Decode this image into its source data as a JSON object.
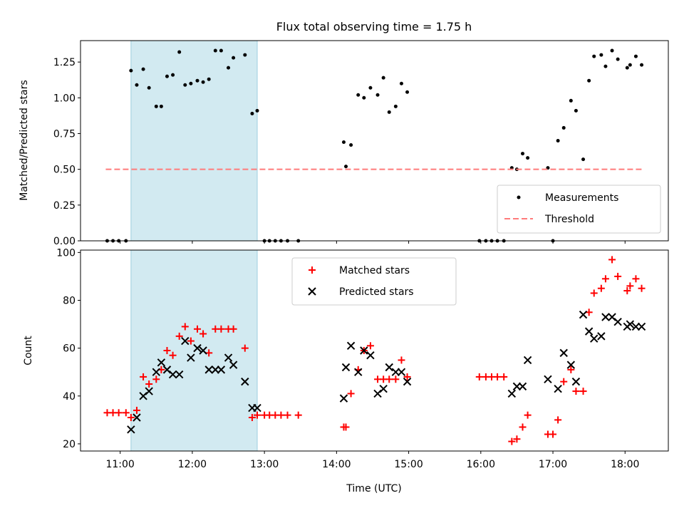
{
  "chart_data": [
    {
      "type": "scatter",
      "title": "Flux total observing time = 1.75 h",
      "ylabel": "Matched/Predicted stars",
      "xlabel": "",
      "xlim": [
        10.45,
        18.6
      ],
      "ylim": [
        0,
        1.4
      ],
      "yticks": [
        "0.00",
        "0.25",
        "0.50",
        "0.75",
        "1.00",
        "1.25"
      ],
      "shaded_interval": [
        11.15,
        12.9
      ],
      "shade_color": "#add8e6",
      "series": [
        {
          "name": "Measurements",
          "marker": "dot",
          "color": "#000000",
          "x": [
            10.82,
            10.9,
            10.98,
            11.08,
            11.15,
            11.23,
            11.32,
            11.4,
            11.5,
            11.57,
            11.65,
            11.73,
            11.82,
            11.9,
            11.98,
            12.07,
            12.15,
            12.23,
            12.32,
            12.4,
            12.5,
            12.57,
            12.73,
            12.83,
            12.9,
            13.0,
            13.07,
            13.15,
            13.23,
            13.32,
            13.47,
            14.1,
            14.13,
            14.2,
            14.3,
            14.38,
            14.47,
            14.57,
            14.65,
            14.73,
            14.82,
            14.9,
            14.98,
            15.98,
            16.07,
            16.15,
            16.23,
            16.32,
            16.43,
            16.5,
            16.58,
            16.65,
            16.93,
            17.0,
            17.07,
            17.15,
            17.25,
            17.32,
            17.42,
            17.5,
            17.57,
            17.67,
            17.73,
            17.82,
            17.9,
            18.03,
            18.07,
            18.15,
            18.23
          ],
          "y": [
            0,
            0,
            0,
            0,
            1.19,
            1.09,
            1.2,
            1.07,
            0.94,
            0.94,
            1.15,
            1.16,
            1.32,
            1.09,
            1.1,
            1.12,
            1.11,
            1.13,
            1.33,
            1.33,
            1.21,
            1.28,
            1.3,
            0.89,
            0.91,
            0,
            0,
            0,
            0,
            0,
            0,
            0.69,
            0.52,
            0.67,
            1.02,
            1.0,
            1.07,
            1.02,
            1.14,
            0.9,
            0.94,
            1.1,
            1.04,
            0,
            0,
            0,
            0,
            0,
            0.51,
            0.5,
            0.61,
            0.58,
            0.51,
            0,
            0.7,
            0.79,
            0.98,
            0.91,
            0.57,
            1.12,
            1.29,
            1.3,
            1.22,
            1.33,
            1.27,
            1.21,
            1.23,
            1.29,
            1.23
          ]
        },
        {
          "name": "Threshold",
          "style": "dashed",
          "color": "#ff6b6b",
          "x": [
            10.8,
            18.25
          ],
          "y": [
            0.5,
            0.5
          ]
        }
      ],
      "legend": "lower-right"
    },
    {
      "type": "scatter",
      "title": "",
      "xlabel": "Time (UTC)",
      "ylabel": "Count",
      "xlim": [
        10.45,
        18.6
      ],
      "ylim": [
        17,
        101
      ],
      "yticks": [
        "20",
        "40",
        "60",
        "80",
        "100"
      ],
      "xticks": [
        "11:00",
        "12:00",
        "13:00",
        "14:00",
        "15:00",
        "16:00",
        "17:00",
        "18:00"
      ],
      "shaded_interval": [
        11.15,
        12.9
      ],
      "series": [
        {
          "name": "Matched stars",
          "marker": "plus",
          "color": "#ff0000",
          "x": [
            10.82,
            10.9,
            10.98,
            11.08,
            11.15,
            11.23,
            11.32,
            11.4,
            11.5,
            11.57,
            11.65,
            11.73,
            11.82,
            11.9,
            11.98,
            12.07,
            12.15,
            12.23,
            12.32,
            12.4,
            12.5,
            12.57,
            12.73,
            12.83,
            12.9,
            13.0,
            13.07,
            13.15,
            13.23,
            13.32,
            13.47,
            14.1,
            14.13,
            14.2,
            14.3,
            14.38,
            14.47,
            14.57,
            14.65,
            14.73,
            14.82,
            14.9,
            14.98,
            15.98,
            16.07,
            16.15,
            16.23,
            16.32,
            16.43,
            16.5,
            16.58,
            16.65,
            16.93,
            17.0,
            17.07,
            17.15,
            17.25,
            17.32,
            17.42,
            17.5,
            17.57,
            17.67,
            17.73,
            17.82,
            17.9,
            18.03,
            18.07,
            18.15,
            18.23
          ],
          "y": [
            33,
            33,
            33,
            33,
            31,
            34,
            48,
            45,
            47,
            51,
            59,
            57,
            65,
            69,
            63,
            68,
            66,
            58,
            68,
            68,
            68,
            68,
            60,
            31,
            32,
            32,
            32,
            32,
            32,
            32,
            32,
            27,
            27,
            41,
            51,
            59,
            61,
            47,
            47,
            47,
            47,
            55,
            48,
            48,
            48,
            48,
            48,
            48,
            21,
            22,
            27,
            32,
            24,
            24,
            30,
            46,
            51,
            42,
            42,
            75,
            83,
            85,
            89,
            97,
            90,
            84,
            86,
            89,
            85
          ]
        },
        {
          "name": "Predicted stars",
          "marker": "x",
          "color": "#000000",
          "x": [
            11.15,
            11.23,
            11.32,
            11.4,
            11.5,
            11.57,
            11.65,
            11.73,
            11.82,
            11.9,
            11.98,
            12.07,
            12.15,
            12.23,
            12.32,
            12.4,
            12.5,
            12.57,
            12.73,
            12.83,
            12.9,
            14.1,
            14.13,
            14.2,
            14.3,
            14.38,
            14.47,
            14.57,
            14.65,
            14.73,
            14.82,
            14.9,
            14.98,
            16.43,
            16.5,
            16.58,
            16.65,
            16.93,
            17.07,
            17.15,
            17.25,
            17.32,
            17.42,
            17.5,
            17.57,
            17.67,
            17.73,
            17.82,
            17.9,
            18.03,
            18.07,
            18.15,
            18.23
          ],
          "y": [
            26,
            31,
            40,
            42,
            50,
            54,
            51,
            49,
            49,
            63,
            56,
            60,
            59,
            51,
            51,
            51,
            56,
            53,
            46,
            35,
            35,
            39,
            52,
            61,
            50,
            59,
            57,
            41,
            43,
            52,
            50,
            50,
            46,
            41,
            44,
            44,
            55,
            47,
            43,
            58,
            53,
            46,
            74,
            67,
            64,
            65,
            73,
            73,
            71,
            69,
            70,
            69,
            69
          ]
        }
      ],
      "legend": "upper-center"
    }
  ]
}
